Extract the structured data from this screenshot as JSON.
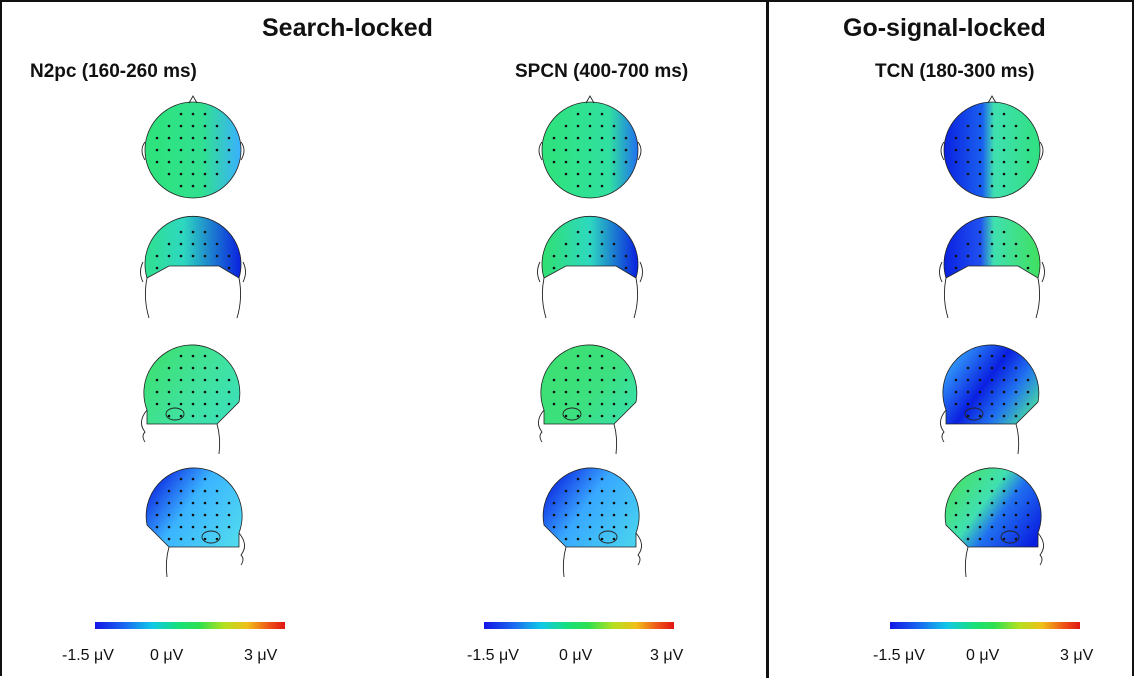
{
  "panels": {
    "left_title": "Search-locked",
    "right_title": "Go-signal-locked"
  },
  "columns": [
    {
      "title": "N2pc (160-260 ms)"
    },
    {
      "title": "SPCN (400-700 ms)"
    },
    {
      "title": "TCN (180-300 ms)"
    }
  ],
  "views": [
    "top",
    "back",
    "left",
    "right"
  ],
  "colorbar": {
    "min_label": "-1.5 μV",
    "mid_label": "0 μV",
    "max_label": "3 μV",
    "colors": [
      "#1515e6",
      "#10c8e8",
      "#2ee050",
      "#f0c018",
      "#e01515"
    ]
  }
}
